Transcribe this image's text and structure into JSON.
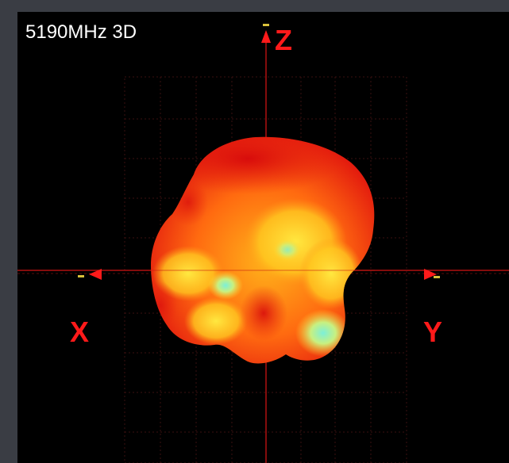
{
  "viewer": {
    "title": "5190MHz 3D",
    "axes": {
      "z_label": "Z",
      "x_label": "X",
      "y_label": "Y"
    }
  },
  "colors": {
    "background": "#000000",
    "frame": "#3a3d44",
    "axis": "#ff1a1a",
    "pattern_high": "#e60f0f",
    "pattern_mid": "#ffcc1a",
    "pattern_low": "#6fe8c9"
  },
  "icons": [
    "axis-arrow-icon"
  ]
}
